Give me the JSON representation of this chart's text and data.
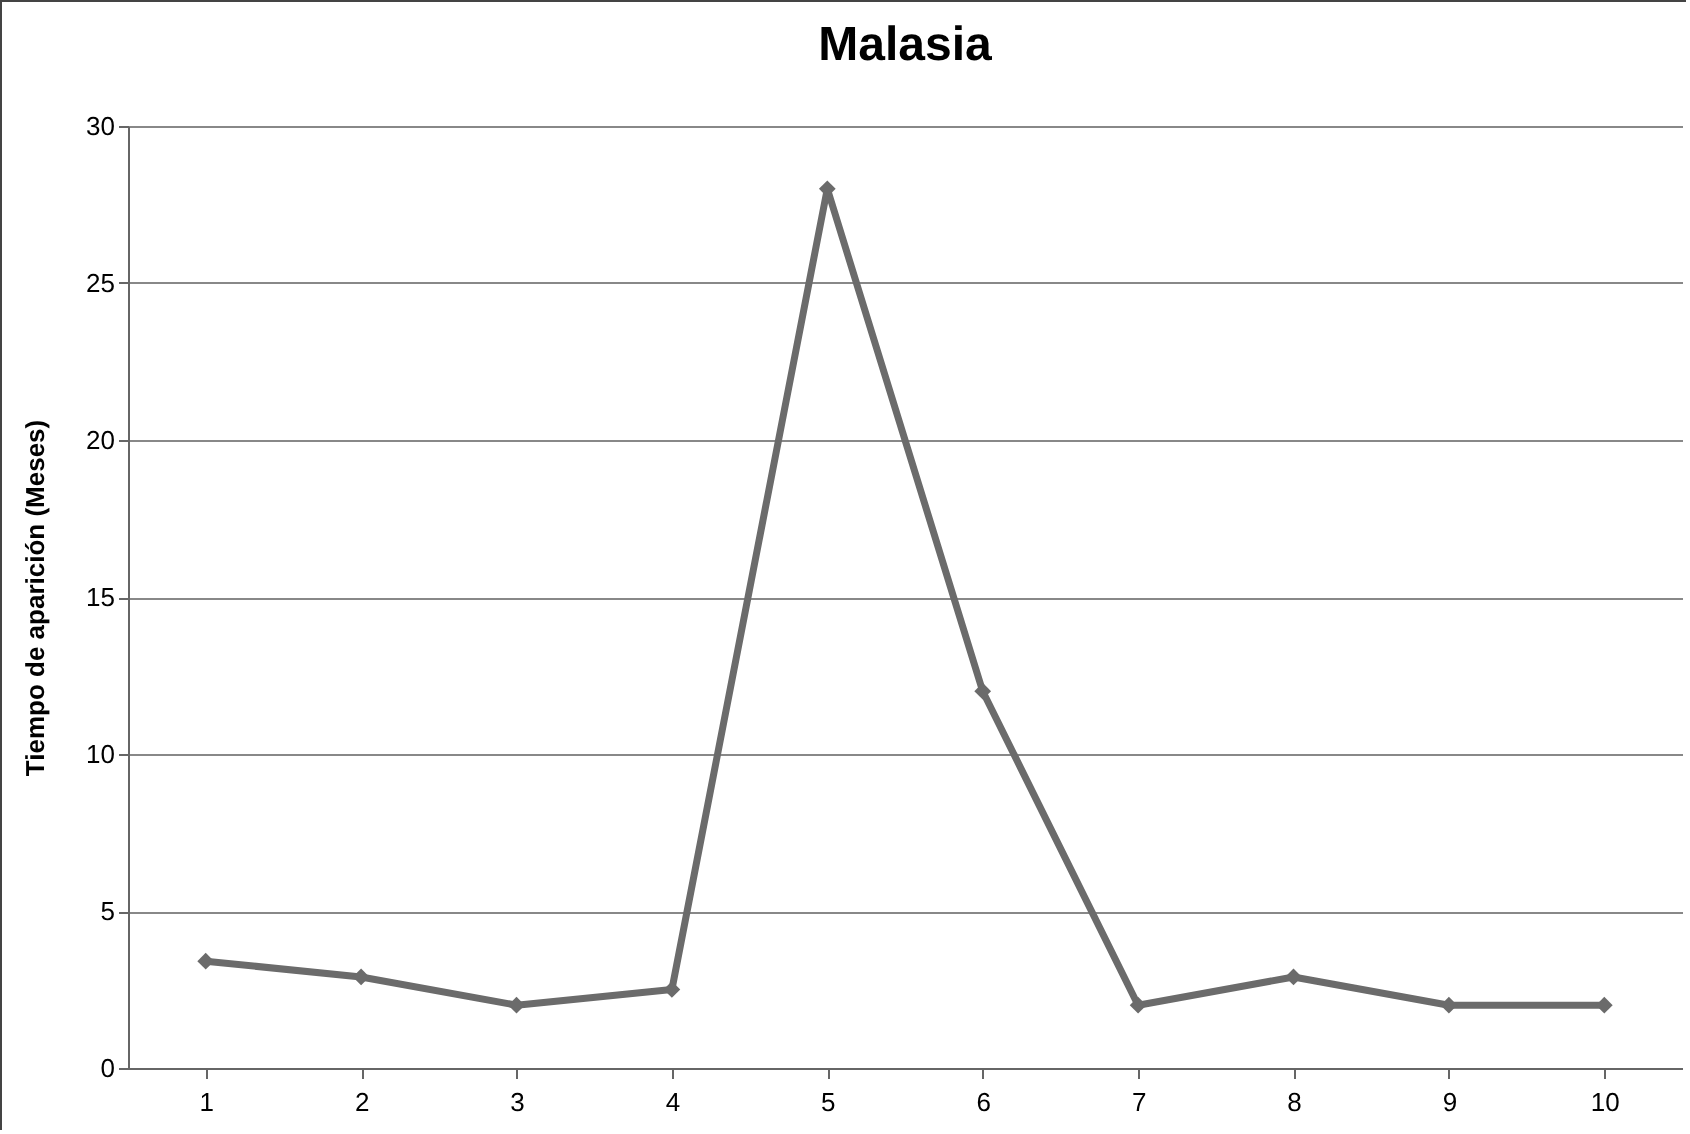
{
  "chart_data": {
    "type": "line",
    "title": "Malasia",
    "ylabel": "Tiempo de aparición  (Meses)",
    "categories": [
      "1",
      "2",
      "3",
      "4",
      "5",
      "6",
      "7",
      "8",
      "9",
      "10"
    ],
    "series": [
      {
        "color": "#6b6b6b",
        "values": [
          3.4,
          2.9,
          2,
          2.5,
          28,
          12,
          2,
          2.9,
          2,
          2
        ]
      }
    ],
    "ylim": [
      0,
      30
    ],
    "yticks": [
      0,
      5,
      10,
      15,
      20,
      25,
      30
    ],
    "grid": "y",
    "legend": false,
    "marker": "diamond",
    "line_style": "solid"
  }
}
